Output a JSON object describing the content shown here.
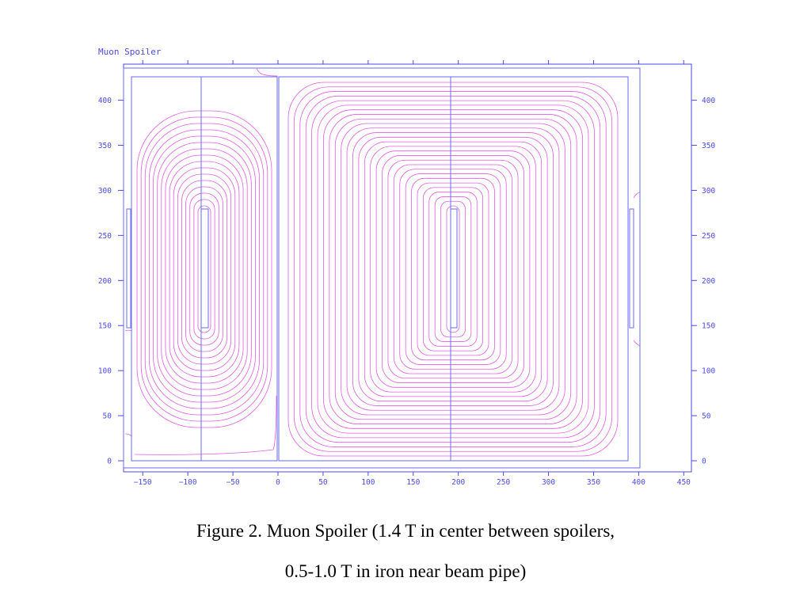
{
  "plot": {
    "title": "Muon Spoiler",
    "x_ticks": [
      "−150",
      "−100",
      "−50",
      "0",
      "50",
      "100",
      "150",
      "200",
      "250",
      "300",
      "350",
      "400",
      "450"
    ],
    "y_ticks": [
      "0",
      "50",
      "100",
      "150",
      "200",
      "250",
      "300",
      "350",
      "400"
    ],
    "colors": {
      "axis": "#4a4ae6",
      "field_lines": "#e05ce0",
      "geometry": "#6a6af0"
    }
  },
  "caption": {
    "line1": "Figure 2. Muon Spoiler (1.4 T in center between spoilers,",
    "line2": "0.5-1.0 T in iron near beam pipe)"
  }
}
